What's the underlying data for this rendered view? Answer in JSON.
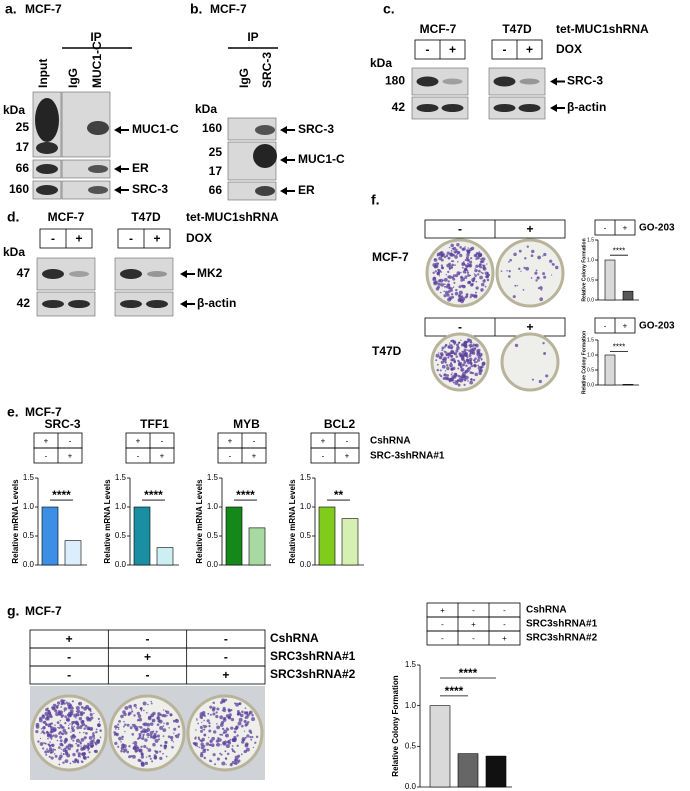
{
  "panels": {
    "a": {
      "label": "a.",
      "cell": "MCF-7",
      "ip": "IP",
      "lanes": [
        "Input",
        "IgG",
        "MUC1-C"
      ],
      "kda": "kDa",
      "markers": [
        "25",
        "17",
        "66",
        "160"
      ],
      "targets": [
        "MUC1-C",
        "ER",
        "SRC-3"
      ]
    },
    "b": {
      "label": "b.",
      "cell": "MCF-7",
      "ip": "IP",
      "lanes": [
        "IgG",
        "SRC-3"
      ],
      "kda": "kDa",
      "markers": [
        "160",
        "25",
        "17",
        "66"
      ],
      "targets": [
        "SRC-3",
        "MUC1-C",
        "ER"
      ]
    },
    "c": {
      "label": "c.",
      "cells": [
        "MCF-7",
        "T47D"
      ],
      "construct": "tet-MUC1shRNA",
      "dox": [
        "-",
        "+"
      ],
      "treatment": "DOX",
      "kda": "kDa",
      "markers": [
        "180",
        "42"
      ],
      "targets": [
        "SRC-3",
        "β-actin"
      ]
    },
    "d": {
      "label": "d.",
      "cells": [
        "MCF-7",
        "T47D"
      ],
      "construct": "tet-MUC1shRNA",
      "dox": [
        "-",
        "+"
      ],
      "treatment": "DOX",
      "kda": "kDa",
      "markers": [
        "47",
        "42"
      ],
      "targets": [
        "MK2",
        "β-actin"
      ]
    },
    "e": {
      "label": "e.",
      "cell": "MCF-7",
      "rows": [
        {
          "name": "CshRNA",
          "marks": [
            "+",
            "-"
          ]
        },
        {
          "name": "SRC-3shRNA#1",
          "marks": [
            "-",
            "+"
          ]
        }
      ]
    },
    "f": {
      "label": "f.",
      "cells": [
        "MCF-7",
        "T47D"
      ],
      "dish": [
        "-",
        "+"
      ],
      "legend": [
        "-",
        "+"
      ],
      "treatment": "GO-203"
    },
    "g": {
      "label": "g.",
      "cell": "MCF-7",
      "rows": [
        {
          "name": "CshRNA",
          "marks": [
            "+",
            "-",
            "-"
          ]
        },
        {
          "name": "SRC3shRNA#1",
          "marks": [
            "-",
            "+",
            "-"
          ]
        },
        {
          "name": "SRC3shRNA#2",
          "marks": [
            "-",
            "-",
            "+"
          ]
        }
      ]
    }
  },
  "chart_data": [
    {
      "type": "bar",
      "title": "SRC-3",
      "ylabel": "Relative mRNA Levels",
      "categories": [
        null,
        null
      ],
      "values": [
        1.0,
        0.42
      ],
      "colors": [
        "#3d8fe6",
        "#dcedfb"
      ],
      "ylim": [
        0,
        1.5
      ],
      "yticks": [
        {
          "value": 0,
          "label": "0.0"
        },
        0.5,
        {
          "value": 1,
          "label": "1.0"
        },
        1.5
      ],
      "annotations": [
        "****"
      ]
    },
    {
      "type": "bar",
      "title": "TFF1",
      "ylabel": "Relative mRNA Levels",
      "categories": [
        null,
        null
      ],
      "values": [
        1.0,
        0.3
      ],
      "colors": [
        "#1a8fa3",
        "#cdeff2"
      ],
      "ylim": [
        0,
        1.5
      ],
      "yticks": [
        {
          "value": 0,
          "label": "0.0"
        },
        0.5,
        {
          "value": 1,
          "label": "1.0"
        },
        1.5
      ],
      "annotations": [
        "****"
      ]
    },
    {
      "type": "bar",
      "title": "MYB",
      "ylabel": "Relative mRNA Levels",
      "categories": [
        null,
        null
      ],
      "values": [
        1.0,
        0.64
      ],
      "colors": [
        "#14891a",
        "#a9d9a2"
      ],
      "ylim": [
        0,
        1.5
      ],
      "yticks": [
        {
          "value": 0,
          "label": "0.0"
        },
        0.5,
        {
          "value": 1,
          "label": "1.0"
        },
        1.5
      ],
      "annotations": [
        "****"
      ]
    },
    {
      "type": "bar",
      "title": "BCL2",
      "ylabel": "Relative mRNA Levels",
      "categories": [
        null,
        null
      ],
      "values": [
        1.0,
        0.8
      ],
      "colors": [
        "#7fcc1c",
        "#d6efb2"
      ],
      "ylim": [
        0,
        1.5
      ],
      "yticks": [
        {
          "value": 0,
          "label": "0.0"
        },
        0.5,
        {
          "value": 1,
          "label": "1.0"
        },
        1.5
      ],
      "annotations": [
        "**"
      ]
    },
    {
      "type": "bar",
      "ylabel": "Relative Colony Formation",
      "categories": [
        null,
        null
      ],
      "values": [
        1.0,
        0.22
      ],
      "colors": [
        "#d9d9d9",
        "#595959"
      ],
      "ylim": [
        0,
        1.5
      ],
      "yticks": [
        {
          "value": 0,
          "label": "0.0"
        },
        0.5,
        {
          "value": 1,
          "label": "1.0"
        },
        1.5
      ],
      "annotations": [
        "****"
      ]
    },
    {
      "type": "bar",
      "ylabel": "Relative Colony Formation",
      "categories": [
        null,
        null
      ],
      "values": [
        1.0,
        0.02
      ],
      "colors": [
        "#d9d9d9",
        "#595959"
      ],
      "ylim": [
        0,
        1.5
      ],
      "yticks": [
        {
          "value": 0,
          "label": "0.0"
        },
        0.5,
        {
          "value": 1,
          "label": "1.0"
        },
        1.5
      ],
      "annotations": [
        "****"
      ]
    },
    {
      "type": "bar",
      "ylabel": "Relative Colony Formation",
      "categories": [
        null,
        null,
        null
      ],
      "values": [
        1.0,
        0.41,
        0.38
      ],
      "colors": [
        "#d9d9d9",
        "#666666",
        "#111111"
      ],
      "ylim": [
        0,
        1.5
      ],
      "yticks": [
        {
          "value": 0,
          "label": "0.0"
        },
        0.5,
        {
          "value": 1,
          "label": "1.0"
        },
        1.5
      ],
      "annotations": [
        "****",
        "****"
      ]
    }
  ]
}
